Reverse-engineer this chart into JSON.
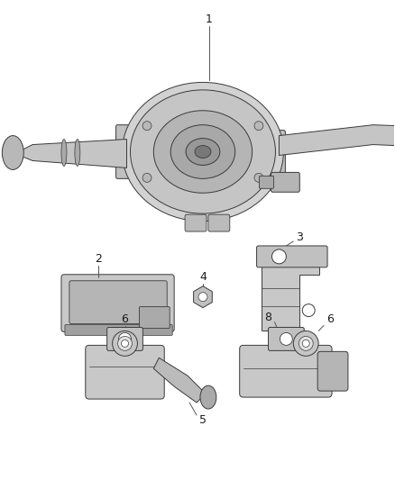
{
  "bg_color": "#ffffff",
  "line_color": "#3a3a3a",
  "label_color": "#1a1a1a",
  "figsize": [
    4.38,
    5.33
  ],
  "dpi": 100,
  "label_fontsize": 9,
  "leader_line_color": "#555555",
  "gray_light": "#d8d8d8",
  "gray_mid": "#b8b8b8",
  "gray_dark": "#888888",
  "gray_fill": "#c8c8c8"
}
